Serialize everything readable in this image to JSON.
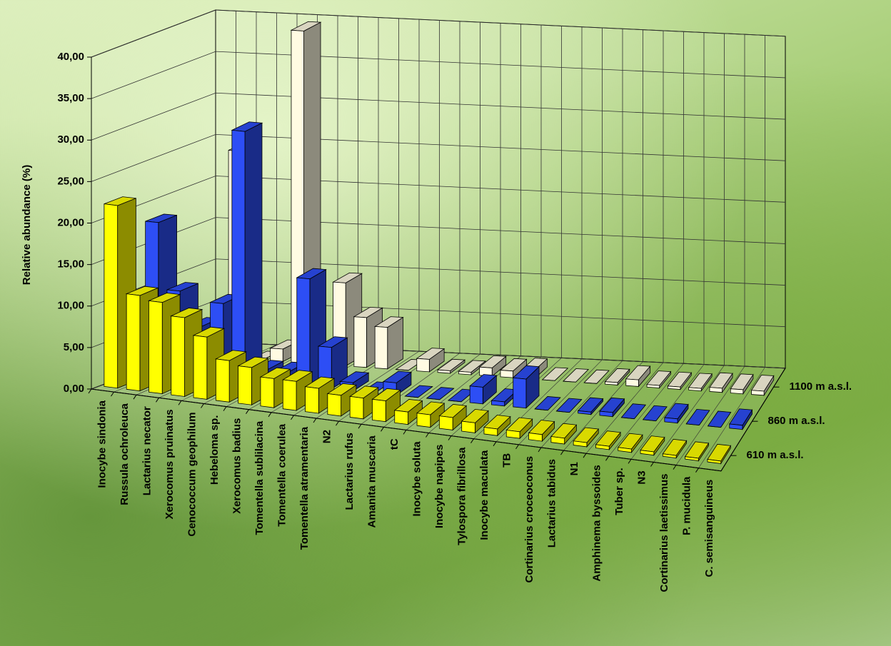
{
  "chart_data": {
    "type": "bar3d",
    "y_label": "Relative abundance (%)",
    "categories": [
      "Inocybe sindonia",
      "Russula ochroleuca",
      "Lactarius necator",
      "Xerocomus pruinatus",
      "Cenococcum geophilum",
      "Hebeloma sp.",
      "Xerocomus badius",
      "Tomentella sublilacina",
      "Tomentella coerulea",
      "Tomentella atramentaria",
      "N2",
      "Lactarius rufus",
      "Amanita muscaria",
      "tC",
      "Inocybe soluta",
      "Inocybe napipes",
      "Tylospora fibrillosa",
      "Inocybe maculata",
      "TB",
      "Cortinarius croceoconus",
      "Lactarius tabidus",
      "N1",
      "Amphinema byssoides",
      "Tuber sp.",
      "N3",
      "Cortinarius laetissimus",
      "P. mucidula",
      "C. semisanguineus"
    ],
    "series": [
      {
        "name": "610 m a.s.l.",
        "color": "#ffff00",
        "values": [
          22,
          11.5,
          11,
          9.5,
          7.5,
          5,
          4.5,
          3.5,
          3.5,
          3,
          2.5,
          2.5,
          2.5,
          1.5,
          1.5,
          1.5,
          1.2,
          0.8,
          0.8,
          0.8,
          0.7,
          0.5,
          0.4,
          0.4,
          0.4,
          0.3,
          0.3,
          0.3
        ]
      },
      {
        "name": "860 m a.s.l.",
        "color": "#2d4ef5",
        "values": [
          18,
          10,
          6,
          9,
          30,
          1.5,
          1.5,
          13,
          5,
          1,
          0,
          1.5,
          0,
          0,
          0,
          2,
          0.5,
          3.5,
          0,
          0,
          0.3,
          0.5,
          0,
          0,
          0.5,
          0,
          0,
          0.5
        ]
      },
      {
        "name": "1100 m a.s.l.",
        "color": "#fffbe2",
        "values": [
          0,
          0,
          25,
          0,
          1.5,
          40,
          0,
          10,
          6,
          5,
          0,
          1.5,
          0.3,
          0.3,
          1,
          0.8,
          1,
          0,
          0,
          0,
          0.3,
          0.8,
          0.3,
          0.3,
          0.3,
          0.5,
          0.5,
          0.5
        ]
      }
    ],
    "ylim": [
      0,
      40
    ],
    "yticks": [
      {
        "value": 0,
        "label": "0,00"
      },
      {
        "value": 5,
        "label": "5,00"
      },
      {
        "value": 10,
        "label": "10,00"
      },
      {
        "value": 15,
        "label": "15,00"
      },
      {
        "value": 20,
        "label": "20,00"
      },
      {
        "value": 25,
        "label": "25,00"
      },
      {
        "value": 30,
        "label": "30,00"
      },
      {
        "value": 35,
        "label": "35,00"
      },
      {
        "value": 40,
        "label": "40,00"
      }
    ],
    "grid": true
  }
}
